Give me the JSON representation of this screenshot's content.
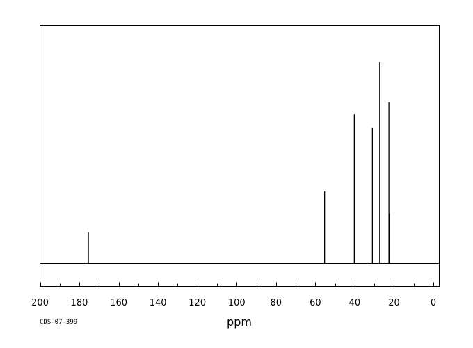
{
  "chart_data": {
    "type": "line",
    "spectrum_type": "13C NMR stick spectrum",
    "xlabel": "ppm",
    "ylabel": "",
    "xlim": [
      200,
      -3
    ],
    "x_reversed": true,
    "xticks": [
      200,
      180,
      160,
      140,
      120,
      100,
      80,
      60,
      40,
      20,
      0
    ],
    "minor_tick_step": 10,
    "grid": false,
    "code": "CDS-07-399",
    "line_color": "#000000",
    "peaks": [
      {
        "ppm": 175.4,
        "intensity": 14.4
      },
      {
        "ppm": 55.3,
        "intensity": 33.3
      },
      {
        "ppm": 40.2,
        "intensity": 68.9
      },
      {
        "ppm": 31.0,
        "intensity": 62.6
      },
      {
        "ppm": 27.3,
        "intensity": 93.1
      },
      {
        "ppm": 22.6,
        "intensity": 74.5
      },
      {
        "ppm": 22.4,
        "intensity": 23.1
      }
    ]
  }
}
